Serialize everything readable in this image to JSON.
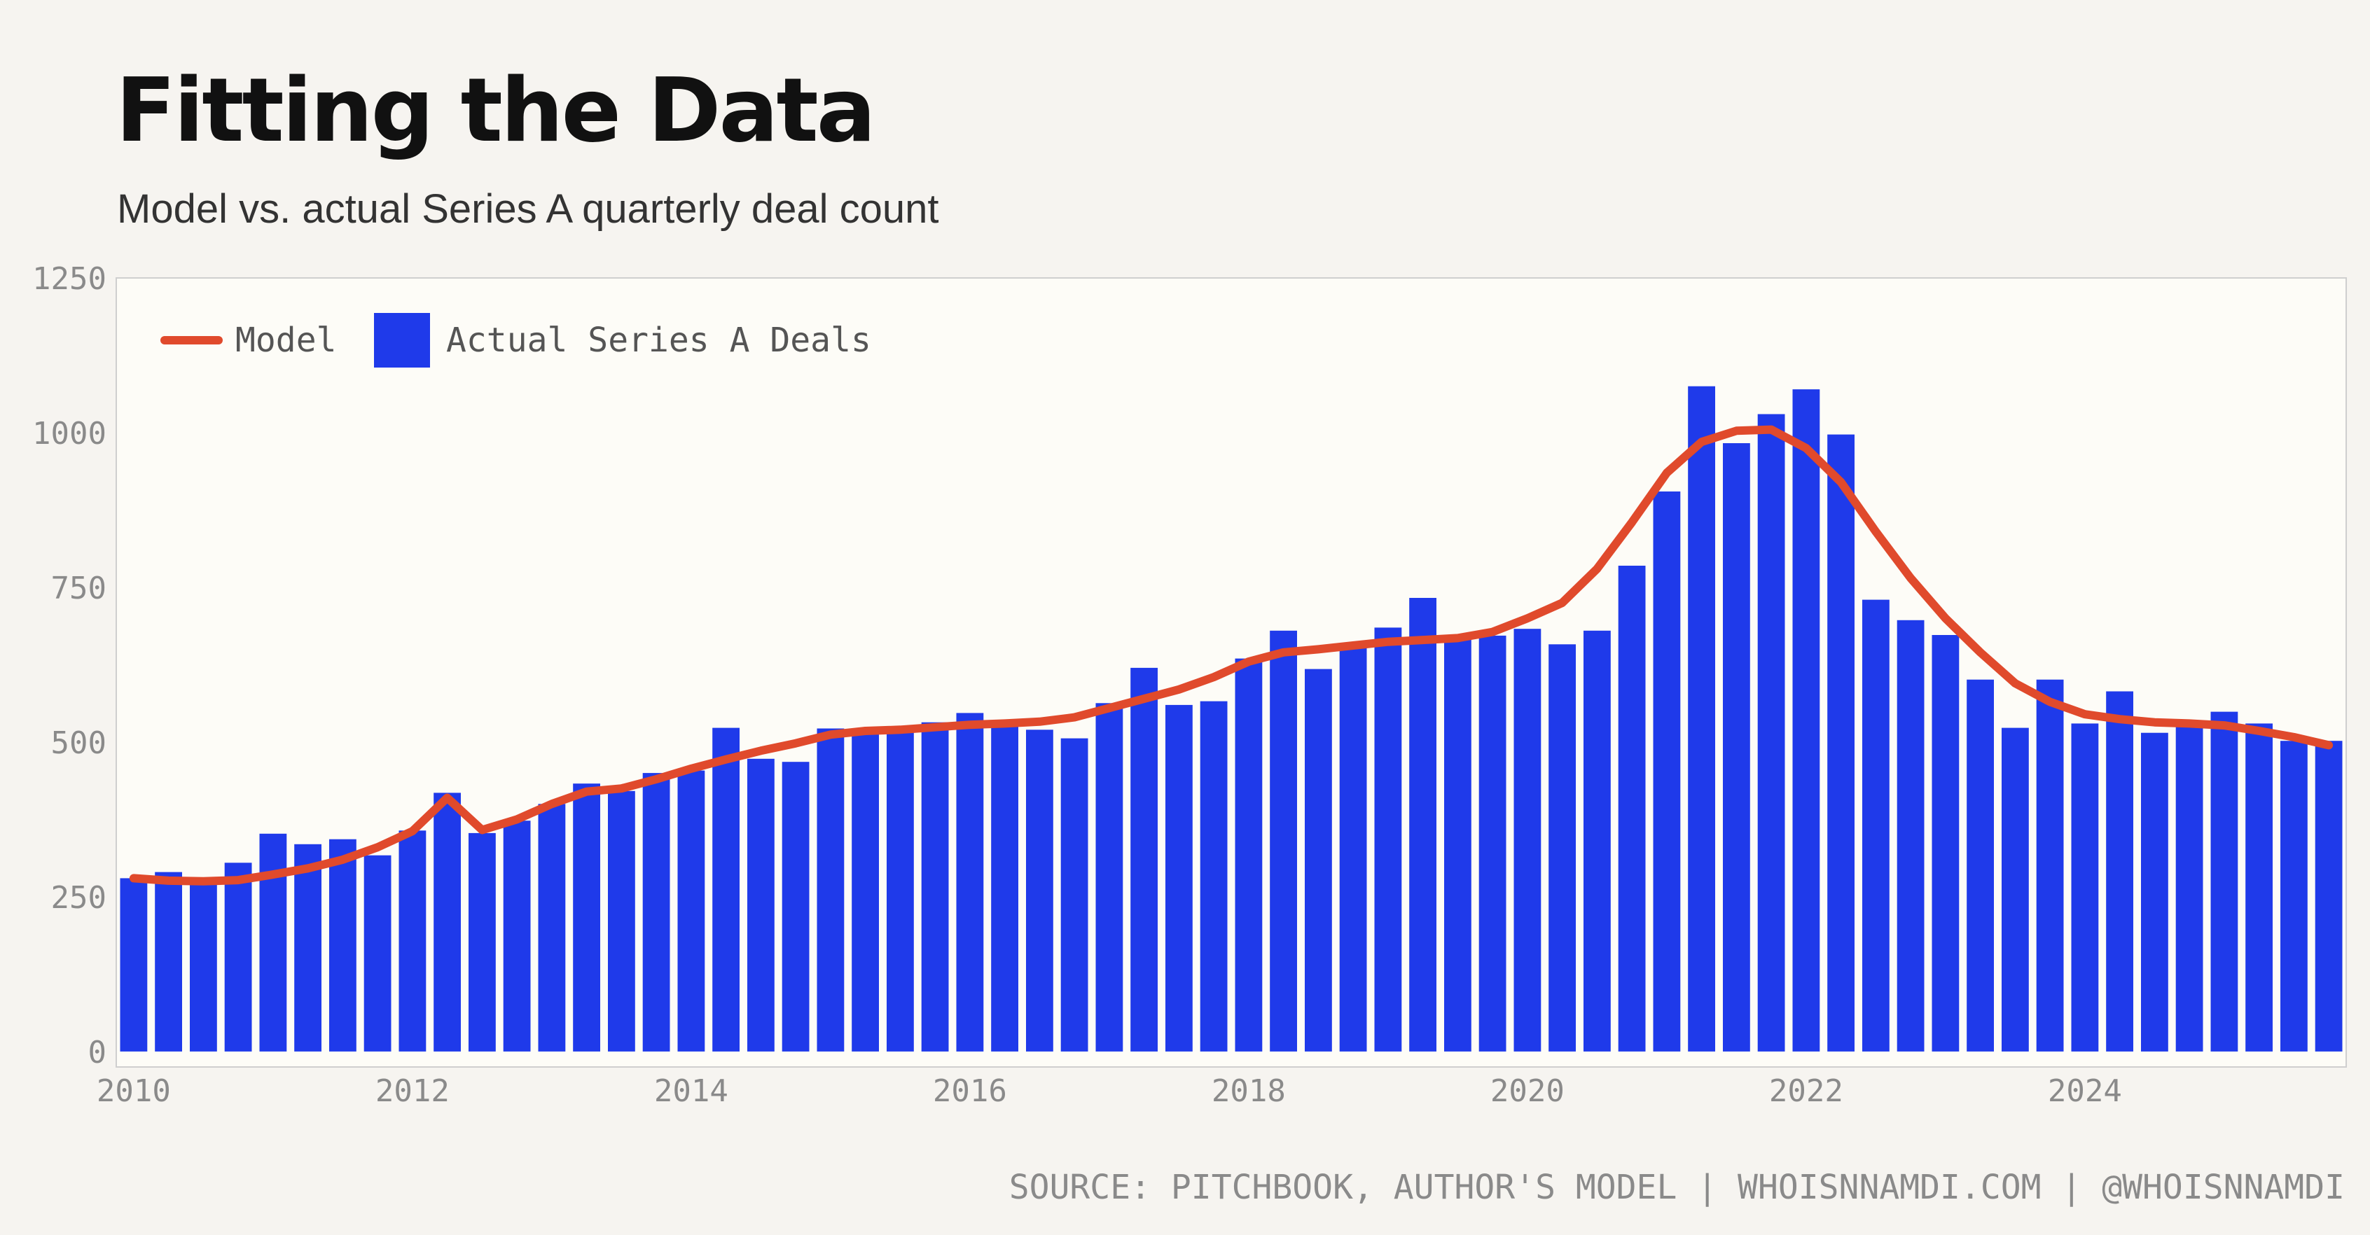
{
  "header": {
    "title": "Fitting the Data",
    "subtitle": "Model vs. actual Series A quarterly deal count"
  },
  "footer": {
    "source": "SOURCE: PITCHBOOK, AUTHOR'S MODEL | WHOISNNAMDI.COM | @WHOISNNAMDI"
  },
  "colors": {
    "bar": "#1f3aea",
    "line": "#e04a2c",
    "plot_bg": "#fdfcf7",
    "page_bg": "#f6f4f0"
  },
  "chart_data": {
    "type": "bar",
    "title": "Fitting the Data",
    "subtitle": "Model vs. actual Series A quarterly deal count",
    "xlabel": "",
    "ylabel": "",
    "ylim": [
      -25,
      1250
    ],
    "xlim": [
      "2009-Q4",
      "2025-Q4"
    ],
    "yticks": [
      0,
      250,
      500,
      750,
      1000,
      1250
    ],
    "xticks": [
      "2010",
      "2012",
      "2014",
      "2016",
      "2018",
      "2020",
      "2022",
      "2024"
    ],
    "grid": false,
    "legend": {
      "position": "top-left",
      "entries": [
        "Model",
        "Actual Series A Deals"
      ]
    },
    "x": [
      "2010-Q1",
      "2010-Q2",
      "2010-Q3",
      "2010-Q4",
      "2011-Q1",
      "2011-Q2",
      "2011-Q3",
      "2011-Q4",
      "2012-Q1",
      "2012-Q2",
      "2012-Q3",
      "2012-Q4",
      "2013-Q1",
      "2013-Q2",
      "2013-Q3",
      "2013-Q4",
      "2014-Q1",
      "2014-Q2",
      "2014-Q3",
      "2014-Q4",
      "2015-Q1",
      "2015-Q2",
      "2015-Q3",
      "2015-Q4",
      "2016-Q1",
      "2016-Q2",
      "2016-Q3",
      "2016-Q4",
      "2017-Q1",
      "2017-Q2",
      "2017-Q3",
      "2017-Q4",
      "2018-Q1",
      "2018-Q2",
      "2018-Q3",
      "2018-Q4",
      "2019-Q1",
      "2019-Q2",
      "2019-Q3",
      "2019-Q4",
      "2020-Q1",
      "2020-Q2",
      "2020-Q3",
      "2020-Q4",
      "2021-Q1",
      "2021-Q2",
      "2021-Q3",
      "2021-Q4",
      "2022-Q1",
      "2022-Q2",
      "2022-Q3",
      "2022-Q4",
      "2023-Q1",
      "2023-Q2",
      "2023-Q3",
      "2023-Q4",
      "2024-Q1",
      "2024-Q2",
      "2024-Q3",
      "2024-Q4",
      "2025-Q1",
      "2025-Q2",
      "2025-Q3",
      "2025-Q4"
    ],
    "series": [
      {
        "name": "Actual Series A Deals",
        "type": "bar",
        "values": [
          280,
          290,
          270,
          305,
          352,
          335,
          343,
          317,
          357,
          418,
          353,
          373,
          400,
          433,
          421,
          450,
          454,
          523,
          473,
          468,
          522,
          520,
          522,
          532,
          547,
          533,
          520,
          506,
          563,
          620,
          560,
          566,
          635,
          680,
          618,
          660,
          685,
          733,
          672,
          672,
          683,
          658,
          680,
          785,
          905,
          1075,
          983,
          1030,
          1070,
          997,
          730,
          697,
          673,
          601,
          523,
          601,
          530,
          582,
          515,
          530,
          549,
          530,
          502,
          502
        ]
      },
      {
        "name": "Model",
        "type": "line",
        "values": [
          280,
          276,
          275,
          277,
          286,
          296,
          310,
          330,
          356,
          410,
          358,
          375,
          400,
          420,
          425,
          440,
          457,
          472,
          486,
          498,
          512,
          518,
          520,
          524,
          528,
          530,
          533,
          540,
          555,
          570,
          585,
          605,
          630,
          645,
          650,
          656,
          662,
          665,
          668,
          678,
          700,
          725,
          780,
          855,
          935,
          985,
          1003,
          1005,
          975,
          920,
          840,
          765,
          700,
          645,
          595,
          565,
          545,
          537,
          532,
          530,
          527,
          518,
          508,
          495
        ]
      }
    ]
  }
}
